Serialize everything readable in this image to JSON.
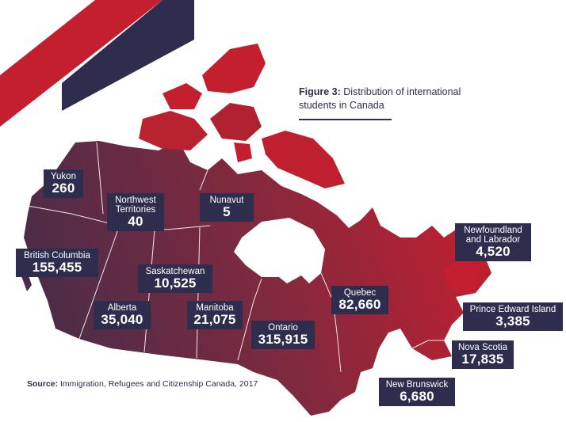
{
  "figure": {
    "label": "Figure 3:",
    "title": "Distribution of international students in Canada"
  },
  "source": {
    "label": "Source:",
    "text": "Immigration, Refugees and Citizenship Canada, 2017"
  },
  "colors": {
    "map_west": "#4a2c48",
    "map_east": "#c41f2e",
    "label_bg": "#2e2d4e",
    "accent_red": "#c41f2e",
    "accent_navy": "#2e2d4e"
  },
  "regions": [
    {
      "name": "Yukon",
      "value": "260"
    },
    {
      "name": "Northwest\nTerritories",
      "value": "40"
    },
    {
      "name": "Nunavut",
      "value": "5"
    },
    {
      "name": "British Columbia",
      "value": "155,455"
    },
    {
      "name": "Saskatchewan",
      "value": "10,525"
    },
    {
      "name": "Alberta",
      "value": "35,040"
    },
    {
      "name": "Manitoba",
      "value": "21,075"
    },
    {
      "name": "Ontario",
      "value": "315,915"
    },
    {
      "name": "Quebec",
      "value": "82,660"
    },
    {
      "name": "Newfoundland\nand Labrador",
      "value": "4,520"
    },
    {
      "name": "Prince Edward Island",
      "value": "3,385"
    },
    {
      "name": "Nova Scotia",
      "value": "17,835"
    },
    {
      "name": "New Brunswick",
      "value": "6,680"
    }
  ]
}
